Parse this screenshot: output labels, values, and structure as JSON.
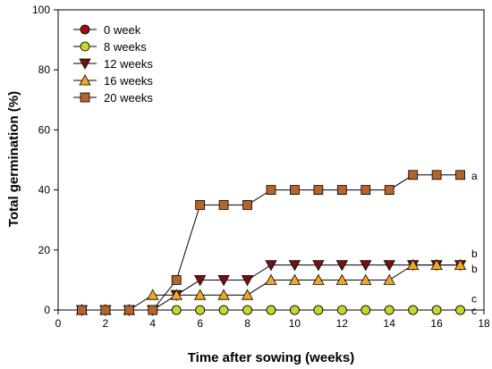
{
  "chart_data": {
    "type": "line",
    "title": "",
    "xlabel": "Time after sowing (weeks)",
    "ylabel": "Total germination (%)",
    "xlim": [
      0,
      18
    ],
    "ylim": [
      0,
      100
    ],
    "xticks": [
      0,
      2,
      4,
      6,
      8,
      10,
      12,
      14,
      16,
      18
    ],
    "yticks": [
      0,
      20,
      40,
      60,
      80,
      100
    ],
    "grid": false,
    "legend_position": "top-left",
    "x": [
      1,
      2,
      3,
      4,
      5,
      6,
      7,
      8,
      9,
      10,
      11,
      12,
      13,
      14,
      15,
      16,
      17
    ],
    "series": [
      {
        "name": "0 week",
        "marker": "circle",
        "color": "#9b1010",
        "values": [
          0,
          0,
          0,
          0,
          0,
          0,
          0,
          0,
          0,
          0,
          0,
          0,
          0,
          0,
          0,
          0,
          0
        ]
      },
      {
        "name": "8 weeks",
        "marker": "circle",
        "color": "#c7d62a",
        "values": [
          0,
          0,
          0,
          0,
          0,
          0,
          0,
          0,
          0,
          0,
          0,
          0,
          0,
          0,
          0,
          0,
          0
        ]
      },
      {
        "name": "12 weeks",
        "marker": "triangle-down",
        "color": "#7a1010",
        "values": [
          0,
          0,
          0,
          0,
          5,
          10,
          10,
          10,
          15,
          15,
          15,
          15,
          15,
          15,
          15,
          15,
          15
        ]
      },
      {
        "name": "16 weeks",
        "marker": "triangle-up",
        "color": "#f5a623",
        "values": [
          0,
          0,
          0,
          5,
          5,
          5,
          5,
          5,
          10,
          10,
          10,
          10,
          10,
          10,
          15,
          15,
          15
        ]
      },
      {
        "name": "20 weeks",
        "marker": "square",
        "color": "#b5652a",
        "values": [
          0,
          0,
          0,
          0,
          10,
          35,
          35,
          35,
          40,
          40,
          40,
          40,
          40,
          40,
          45,
          45,
          45
        ]
      }
    ],
    "annotations": [
      {
        "text": "a",
        "y": 45
      },
      {
        "text": "b",
        "y": 19
      },
      {
        "text": "b",
        "y": 14
      },
      {
        "text": "c",
        "y": 4
      },
      {
        "text": "c",
        "y": 0
      }
    ]
  }
}
